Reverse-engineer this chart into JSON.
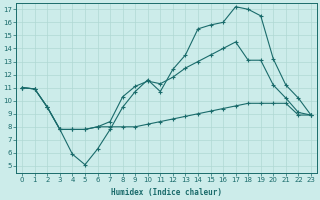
{
  "xlabel": "Humidex (Indice chaleur)",
  "bg_color": "#ccecea",
  "grid_color": "#b0d8d4",
  "line_color": "#1a6b6b",
  "xlim": [
    -0.5,
    23.5
  ],
  "ylim": [
    4.5,
    17.5
  ],
  "xticks": [
    0,
    1,
    2,
    3,
    4,
    5,
    6,
    7,
    8,
    9,
    10,
    11,
    12,
    13,
    14,
    15,
    16,
    17,
    18,
    19,
    20,
    21,
    22,
    23
  ],
  "yticks": [
    5,
    6,
    7,
    8,
    9,
    10,
    11,
    12,
    13,
    14,
    15,
    16,
    17
  ],
  "line1": {
    "x": [
      0,
      1,
      2,
      3,
      4,
      5,
      6,
      7,
      8,
      9,
      10,
      11,
      12,
      13,
      14,
      15,
      16,
      17,
      18,
      19,
      20,
      21,
      22,
      23
    ],
    "y": [
      11.0,
      10.9,
      9.5,
      7.8,
      5.9,
      5.1,
      6.3,
      7.8,
      9.5,
      10.7,
      11.6,
      10.7,
      12.4,
      13.5,
      15.5,
      15.8,
      16.0,
      17.2,
      17.0,
      16.5,
      13.2,
      11.2,
      10.2,
      8.9
    ]
  },
  "line2": {
    "x": [
      0,
      1,
      2,
      3,
      4,
      5,
      6,
      7,
      8,
      9,
      10,
      11,
      12,
      13,
      14,
      15,
      16,
      17,
      18,
      19,
      20,
      21,
      22,
      23
    ],
    "y": [
      11.0,
      10.9,
      9.5,
      7.8,
      7.8,
      7.8,
      8.0,
      8.4,
      10.3,
      11.1,
      11.5,
      11.3,
      11.8,
      12.5,
      13.0,
      13.5,
      14.0,
      14.5,
      13.1,
      13.1,
      11.2,
      10.2,
      9.1,
      8.9
    ]
  },
  "line3": {
    "x": [
      0,
      1,
      2,
      3,
      4,
      5,
      6,
      7,
      8,
      9,
      10,
      11,
      12,
      13,
      14,
      15,
      16,
      17,
      18,
      19,
      20,
      21,
      22,
      23
    ],
    "y": [
      11.0,
      10.9,
      9.5,
      7.8,
      7.8,
      7.8,
      8.0,
      8.0,
      8.0,
      8.0,
      8.2,
      8.4,
      8.6,
      8.8,
      9.0,
      9.2,
      9.4,
      9.6,
      9.8,
      9.8,
      9.8,
      9.8,
      8.9,
      8.9
    ]
  }
}
